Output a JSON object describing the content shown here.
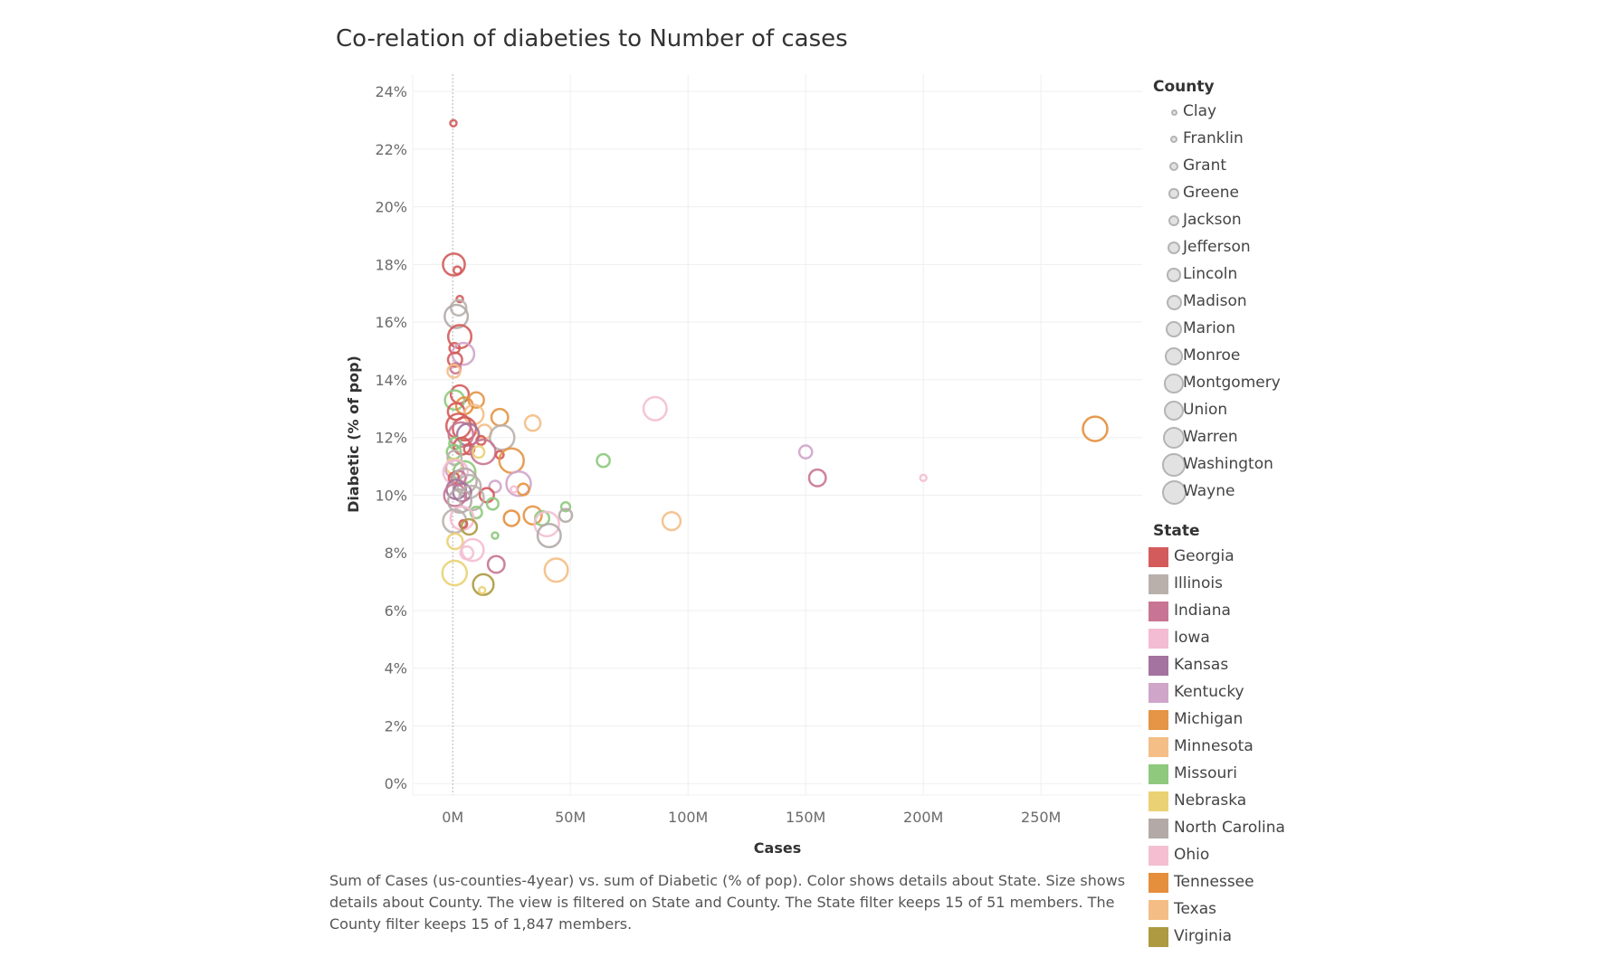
{
  "chart_data": {
    "type": "scatter",
    "title": "Co-relation of diabeties to Number of cases",
    "xlabel": "Cases",
    "ylabel": "Diabetic (% of pop)",
    "xlim": [
      -17,
      293
    ],
    "ylim": [
      -0.4,
      24.6
    ],
    "x_ticks": [
      0,
      50,
      100,
      150,
      200,
      250
    ],
    "x_tick_labels": [
      "0M",
      "50M",
      "100M",
      "150M",
      "200M",
      "250M"
    ],
    "y_ticks": [
      0,
      2,
      4,
      6,
      8,
      10,
      12,
      14,
      16,
      18,
      20,
      22,
      24
    ],
    "y_tick_labels": [
      "0%",
      "2%",
      "4%",
      "6%",
      "8%",
      "10%",
      "12%",
      "14%",
      "16%",
      "18%",
      "20%",
      "22%",
      "24%"
    ],
    "grid": true,
    "legend_position": "right",
    "size_legend": {
      "title": "County",
      "items": [
        "Clay",
        "Franklin",
        "Grant",
        "Greene",
        "Jackson",
        "Jefferson",
        "Lincoln",
        "Madison",
        "Marion",
        "Monroe",
        "Montgomery",
        "Union",
        "Warren",
        "Washington",
        "Wayne"
      ]
    },
    "color_legend": {
      "title": "State",
      "items": [
        {
          "name": "Georgia",
          "color": "#d45b5b"
        },
        {
          "name": "Illinois",
          "color": "#b9b0ac"
        },
        {
          "name": "Indiana",
          "color": "#c87594"
        },
        {
          "name": "Iowa",
          "color": "#f4bcd2"
        },
        {
          "name": "Kansas",
          "color": "#a4739f"
        },
        {
          "name": "Kentucky",
          "color": "#cfa5c9"
        },
        {
          "name": "Michigan",
          "color": "#e49545"
        },
        {
          "name": "Minnesota",
          "color": "#f4be86"
        },
        {
          "name": "Missouri",
          "color": "#8ec97d"
        },
        {
          "name": "Nebraska",
          "color": "#ead274"
        },
        {
          "name": "North Carolina",
          "color": "#b3aaa7"
        },
        {
          "name": "Ohio",
          "color": "#f3bfd1"
        },
        {
          "name": "Tennessee",
          "color": "#e58e3c"
        },
        {
          "name": "Texas",
          "color": "#f4bd85"
        },
        {
          "name": "Virginia",
          "color": "#ad9a41"
        }
      ]
    },
    "points": [
      {
        "x": 0.3,
        "y": 22.9,
        "state": "Georgia",
        "county": "Clay"
      },
      {
        "x": 0.5,
        "y": 18.0,
        "state": "Georgia",
        "county": "Warren"
      },
      {
        "x": 2.0,
        "y": 17.8,
        "state": "Georgia",
        "county": "Franklin"
      },
      {
        "x": 3.0,
        "y": 16.8,
        "state": "Georgia",
        "county": "Clay"
      },
      {
        "x": 2.5,
        "y": 16.5,
        "state": "Illinois",
        "county": "Madison"
      },
      {
        "x": 1.5,
        "y": 16.2,
        "state": "North Carolina",
        "county": "Washington"
      },
      {
        "x": 3.0,
        "y": 15.5,
        "state": "Georgia",
        "county": "Washington"
      },
      {
        "x": 0.8,
        "y": 15.1,
        "state": "Georgia",
        "county": "Greene"
      },
      {
        "x": 4.5,
        "y": 14.9,
        "state": "Kentucky",
        "county": "Warren"
      },
      {
        "x": 1.0,
        "y": 14.7,
        "state": "Georgia",
        "county": "Lincoln"
      },
      {
        "x": 1.2,
        "y": 14.4,
        "state": "Indiana",
        "county": "Greene"
      },
      {
        "x": 0.5,
        "y": 14.3,
        "state": "Minnesota",
        "county": "Jefferson"
      },
      {
        "x": 3.0,
        "y": 13.5,
        "state": "Georgia",
        "county": "Monroe"
      },
      {
        "x": 0.8,
        "y": 13.3,
        "state": "Missouri",
        "county": "Montgomery"
      },
      {
        "x": 10.0,
        "y": 13.3,
        "state": "Michigan",
        "county": "Madison"
      },
      {
        "x": 5.0,
        "y": 13.1,
        "state": "Tennessee",
        "county": "Marion"
      },
      {
        "x": 1.5,
        "y": 12.9,
        "state": "Georgia",
        "county": "Marion"
      },
      {
        "x": 9.0,
        "y": 12.8,
        "state": "Minnesota",
        "county": "Montgomery"
      },
      {
        "x": 20.0,
        "y": 12.7,
        "state": "Michigan",
        "county": "Marion"
      },
      {
        "x": 34.0,
        "y": 12.5,
        "state": "Texas",
        "county": "Madison"
      },
      {
        "x": 2.5,
        "y": 12.4,
        "state": "Georgia",
        "county": "Wayne"
      },
      {
        "x": 5.0,
        "y": 12.3,
        "state": "Georgia",
        "county": "Washington"
      },
      {
        "x": 13.5,
        "y": 12.2,
        "state": "Minnesota",
        "county": "Lincoln"
      },
      {
        "x": 3.5,
        "y": 12.1,
        "state": "Indiana",
        "county": "Wayne"
      },
      {
        "x": 6.5,
        "y": 12.1,
        "state": "Kansas",
        "county": "Warren"
      },
      {
        "x": 21.0,
        "y": 12.0,
        "state": "Illinois",
        "county": "Wayne"
      },
      {
        "x": 86.0,
        "y": 13.0,
        "state": "Ohio",
        "county": "Washington"
      },
      {
        "x": 273.0,
        "y": 12.3,
        "state": "Tennessee",
        "county": "Wayne"
      },
      {
        "x": 12.0,
        "y": 11.9,
        "state": "Georgia",
        "county": "Grant"
      },
      {
        "x": 1.0,
        "y": 11.8,
        "state": "Missouri",
        "county": "Jackson"
      },
      {
        "x": 4.0,
        "y": 11.7,
        "state": "Georgia",
        "county": "Marion"
      },
      {
        "x": 7.0,
        "y": 11.6,
        "state": "Georgia",
        "county": "Greene"
      },
      {
        "x": 13.0,
        "y": 11.5,
        "state": "Indiana",
        "county": "Wayne"
      },
      {
        "x": 0.5,
        "y": 11.5,
        "state": "Missouri",
        "county": "Lincoln"
      },
      {
        "x": 11.0,
        "y": 11.5,
        "state": "Nebraska",
        "county": "Jackson"
      },
      {
        "x": 150.0,
        "y": 11.5,
        "state": "Kentucky",
        "county": "Jefferson"
      },
      {
        "x": 20.0,
        "y": 11.4,
        "state": "Georgia",
        "county": "Franklin"
      },
      {
        "x": 0.8,
        "y": 11.3,
        "state": "Illinois",
        "county": "Lincoln"
      },
      {
        "x": 25.0,
        "y": 11.2,
        "state": "Michigan",
        "county": "Wayne"
      },
      {
        "x": 64.0,
        "y": 11.2,
        "state": "Missouri",
        "county": "Jefferson"
      },
      {
        "x": 0.5,
        "y": 11.0,
        "state": "Nebraska",
        "county": "Madison"
      },
      {
        "x": 0.8,
        "y": 10.9,
        "state": "Kentucky",
        "county": "Monroe"
      },
      {
        "x": 5.0,
        "y": 10.8,
        "state": "Missouri",
        "county": "Warren"
      },
      {
        "x": 1.2,
        "y": 10.8,
        "state": "Iowa",
        "county": "Wayne"
      },
      {
        "x": 0.5,
        "y": 10.6,
        "state": "Georgia",
        "county": "Greene"
      },
      {
        "x": 2.5,
        "y": 10.6,
        "state": "Indiana",
        "county": "Lincoln"
      },
      {
        "x": 155.0,
        "y": 10.6,
        "state": "Indiana",
        "county": "Marion"
      },
      {
        "x": 200.0,
        "y": 10.6,
        "state": "Ohio",
        "county": "Clay"
      },
      {
        "x": 5.0,
        "y": 10.5,
        "state": "North Carolina",
        "county": "Wayne"
      },
      {
        "x": 28.0,
        "y": 10.4,
        "state": "Kentucky",
        "county": "Wayne"
      },
      {
        "x": 7.0,
        "y": 10.3,
        "state": "Illinois",
        "county": "Washington"
      },
      {
        "x": 18.0,
        "y": 10.3,
        "state": "Kentucky",
        "county": "Jackson"
      },
      {
        "x": 30.0,
        "y": 10.2,
        "state": "Michigan",
        "county": "Jackson"
      },
      {
        "x": 1.5,
        "y": 10.2,
        "state": "Kansas",
        "county": "Montgomery"
      },
      {
        "x": 26.0,
        "y": 10.2,
        "state": "Ohio",
        "county": "Clay"
      },
      {
        "x": 4.0,
        "y": 10.1,
        "state": "Kansas",
        "county": "Monroe"
      },
      {
        "x": 1.0,
        "y": 10.0,
        "state": "Indiana",
        "county": "Warren"
      },
      {
        "x": 14.5,
        "y": 10.0,
        "state": "Georgia",
        "county": "Lincoln"
      },
      {
        "x": 8.0,
        "y": 9.9,
        "state": "Illinois",
        "county": "Wayne"
      },
      {
        "x": 3.0,
        "y": 9.8,
        "state": "North Carolina",
        "county": "Washington"
      },
      {
        "x": 17.0,
        "y": 9.7,
        "state": "Missouri",
        "county": "Jackson"
      },
      {
        "x": 48.0,
        "y": 9.6,
        "state": "Missouri",
        "county": "Grant"
      },
      {
        "x": 10.0,
        "y": 9.4,
        "state": "Missouri",
        "county": "Jackson"
      },
      {
        "x": 48.0,
        "y": 9.3,
        "state": "North Carolina",
        "county": "Jefferson"
      },
      {
        "x": 34.0,
        "y": 9.3,
        "state": "Michigan",
        "county": "Monroe"
      },
      {
        "x": 38.0,
        "y": 9.2,
        "state": "Missouri",
        "county": "Lincoln"
      },
      {
        "x": 25.0,
        "y": 9.2,
        "state": "Tennessee",
        "county": "Madison"
      },
      {
        "x": 4.0,
        "y": 9.2,
        "state": "Iowa",
        "county": "Washington"
      },
      {
        "x": 0.8,
        "y": 9.1,
        "state": "Illinois",
        "county": "Washington"
      },
      {
        "x": 93.0,
        "y": 9.1,
        "state": "Minnesota",
        "county": "Monroe"
      },
      {
        "x": 4.5,
        "y": 9.0,
        "state": "Georgia",
        "county": "Franklin"
      },
      {
        "x": 40.0,
        "y": 9.0,
        "state": "Ohio",
        "county": "Wayne"
      },
      {
        "x": 7.0,
        "y": 8.9,
        "state": "Virginia",
        "county": "Madison"
      },
      {
        "x": 41.0,
        "y": 8.6,
        "state": "North Carolina",
        "county": "Washington"
      },
      {
        "x": 18.0,
        "y": 8.6,
        "state": "Missouri",
        "county": "Clay"
      },
      {
        "x": 1.0,
        "y": 8.4,
        "state": "Nebraska",
        "county": "Madison"
      },
      {
        "x": 8.5,
        "y": 8.1,
        "state": "Iowa",
        "county": "Warren"
      },
      {
        "x": 6.0,
        "y": 8.0,
        "state": "Ohio",
        "county": "Jefferson"
      },
      {
        "x": 18.5,
        "y": 7.6,
        "state": "Indiana",
        "county": "Marion"
      },
      {
        "x": 44.0,
        "y": 7.4,
        "state": "Minnesota",
        "county": "Washington"
      },
      {
        "x": 0.8,
        "y": 7.3,
        "state": "Nebraska",
        "county": "Wayne"
      },
      {
        "x": 13.0,
        "y": 6.9,
        "state": "Virginia",
        "county": "Union"
      },
      {
        "x": 12.5,
        "y": 6.7,
        "state": "Nebraska",
        "county": "Clay"
      }
    ]
  },
  "caption": "Sum of Cases (us-counties-4year) vs. sum of Diabetic (% of pop).  Color shows details about State.  Size shows details about County. The view is filtered on State and County. The State filter keeps 15 of 51 members. The County filter keeps 15 of 1,847 members."
}
